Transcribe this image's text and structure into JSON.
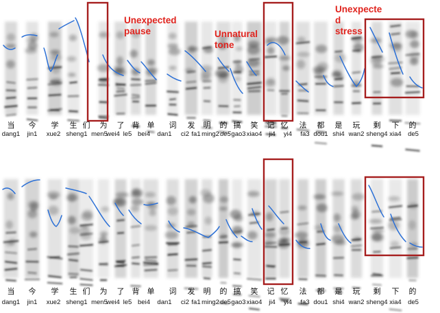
{
  "panels": [
    {
      "id": "top",
      "annotations": [
        {
          "key": "pause",
          "lines": [
            "Unexpected",
            "pause"
          ]
        },
        {
          "key": "tone",
          "lines": [
            "Unnatural",
            "tone"
          ]
        },
        {
          "key": "stress",
          "lines": [
            "Unexpecte",
            "d",
            "stress"
          ]
        }
      ],
      "hanzi": [
        "当",
        "今",
        "学",
        "生",
        "们",
        "为",
        "了",
        "背",
        "单",
        "词",
        "发",
        "明",
        "的",
        "搞",
        "笑",
        "记",
        "忆",
        "法",
        "都",
        "是",
        "玩",
        "剩",
        "下",
        "的"
      ],
      "pinyin": [
        "dang1",
        "jin1",
        "xue2",
        "sheng1",
        "men5",
        "wei4",
        "le5",
        "bei4",
        "dan1",
        "ci2",
        "fa1",
        "ming2",
        "de5",
        "gao3",
        "xiao4",
        "ji4",
        "yi4",
        "fa3",
        "dou1",
        "shi4",
        "wan2",
        "sheng4",
        "xia4",
        "de5"
      ],
      "italic_index": 12
    },
    {
      "id": "bottom",
      "annotations": [],
      "hanzi": [
        "当",
        "今",
        "学",
        "生",
        "们",
        "为",
        "了",
        "背",
        "单",
        "词",
        "发",
        "明",
        "的",
        "搞",
        "笑",
        "记",
        "忆",
        "法",
        "都",
        "是",
        "玩",
        "剩",
        "下",
        "的"
      ],
      "pinyin": [
        "dang1",
        "jin1",
        "xue2",
        "sheng1",
        "men5",
        "wei4",
        "le5",
        "bei4",
        "dan1",
        "ci2",
        "fa1",
        "ming2",
        "de5",
        "gao3",
        "xiao4",
        "ji4",
        "yi4",
        "fa3",
        "dou1",
        "shi4",
        "wan2",
        "sheng4",
        "xia4",
        "de5"
      ],
      "italic_index": -1
    }
  ],
  "colors": {
    "box": "#a61e1e",
    "annotation": "#e0241e",
    "pitch_contour": "#2a6fd6"
  }
}
